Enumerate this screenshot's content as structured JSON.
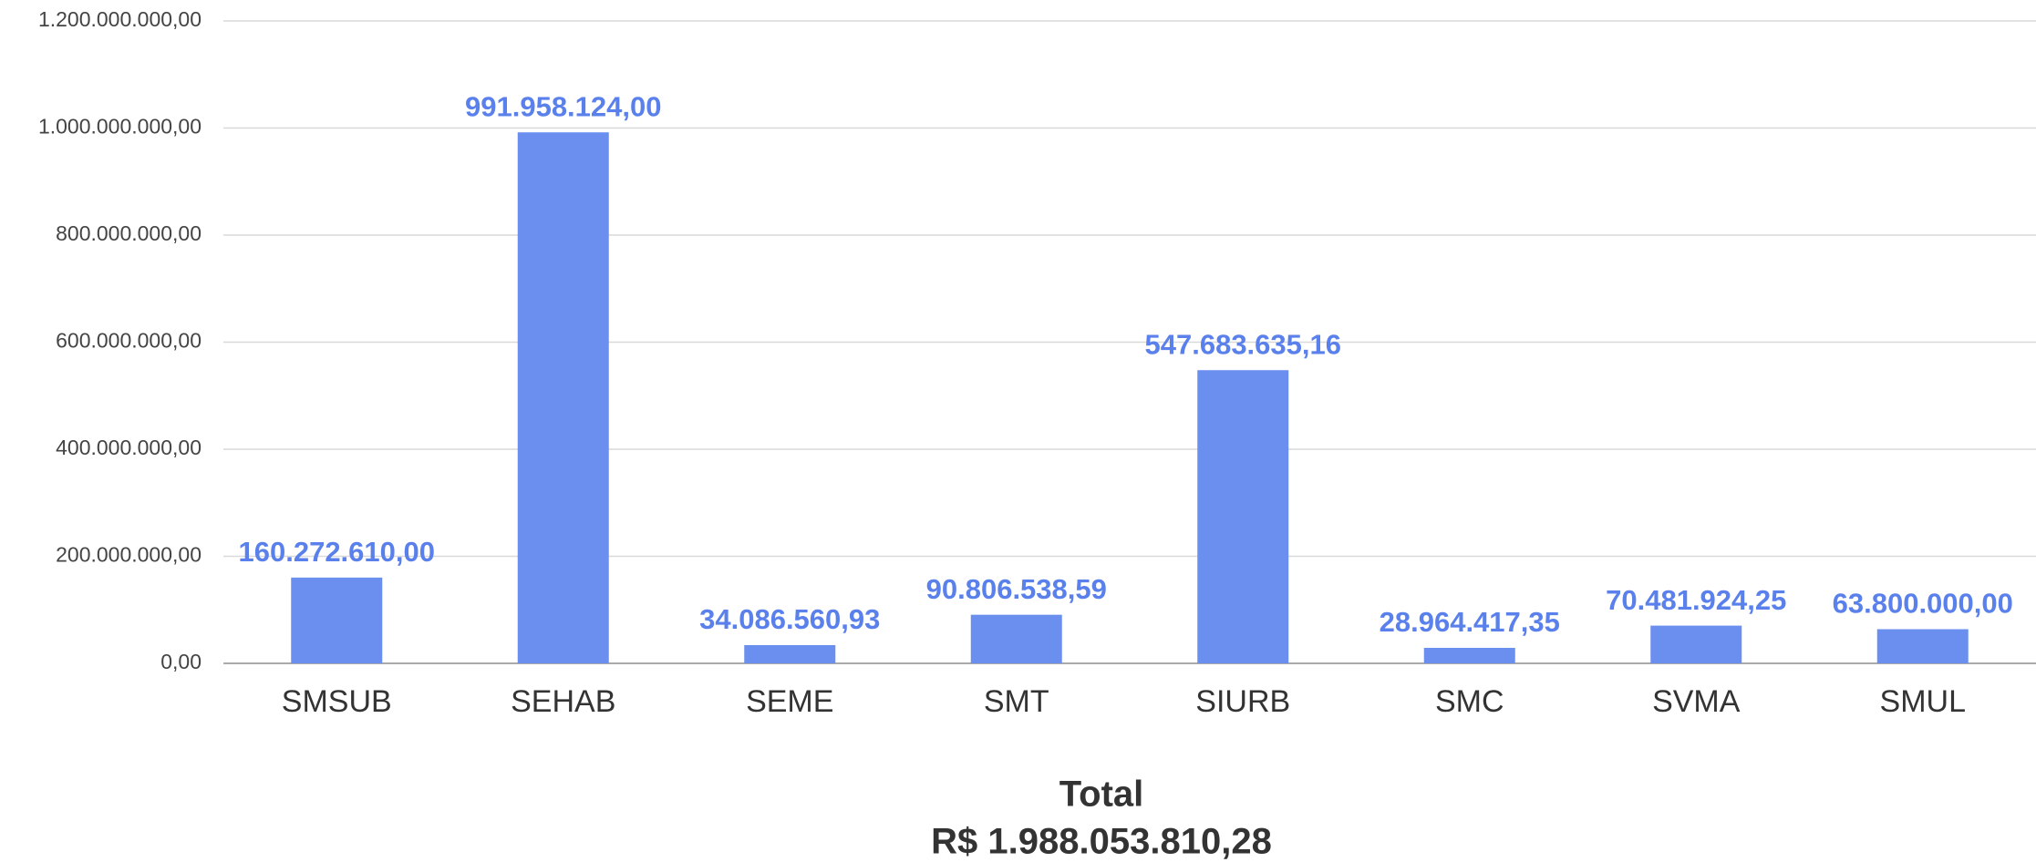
{
  "chart_data": {
    "type": "bar",
    "categories": [
      "SMSUB",
      "SEHAB",
      "SEME",
      "SMT",
      "SIURB",
      "SMC",
      "SVMA",
      "SMUL"
    ],
    "values": [
      160272610,
      991958124,
      34086560.93,
      90806538.59,
      547683635.16,
      28964417.35,
      70481924.25,
      63800000
    ],
    "value_labels": [
      "160.272.610,00",
      "991.958.124,00",
      "34.086.560,93",
      "90.806.538,59",
      "547.683.635,16",
      "28.964.417,35",
      "70.481.924,25",
      "63.800.000,00"
    ],
    "color": "#6a8fef",
    "label_color": "#5a80ec",
    "ylim": [
      0,
      1200000000
    ],
    "yticks": [
      {
        "value": 0,
        "label": "0,00"
      },
      {
        "value": 200000000,
        "label": "200.000.000,00"
      },
      {
        "value": 400000000,
        "label": "400.000.000,00"
      },
      {
        "value": 600000000,
        "label": "600.000.000,00"
      },
      {
        "value": 800000000,
        "label": "800.000.000,00"
      },
      {
        "value": 1000000000,
        "label": "1.000.000.000,00"
      },
      {
        "value": 1200000000,
        "label": "1.200.000.000,00"
      }
    ],
    "grid": true,
    "total_label": "Total",
    "total_value": "R$ 1.988.053.810,28"
  }
}
